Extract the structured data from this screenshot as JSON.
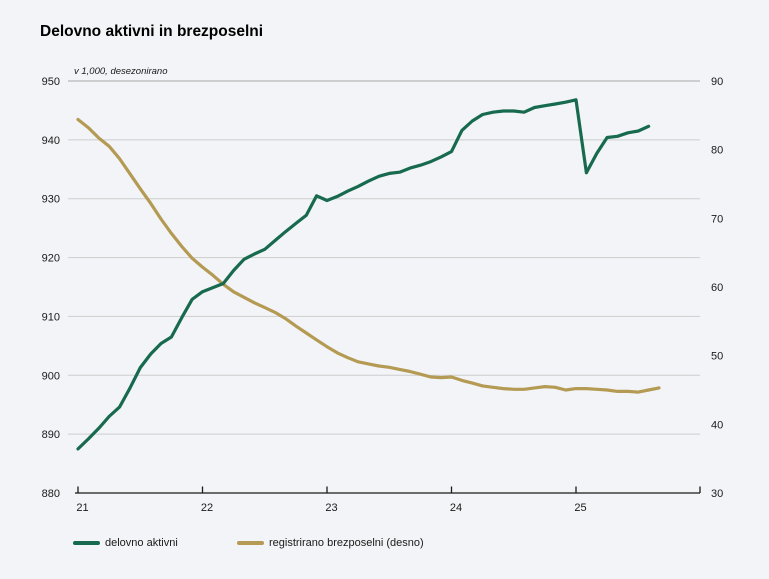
{
  "title": "Delovno aktivni in brezposelni",
  "subtitle": "v 1,000, desezonirano",
  "colors": {
    "employed": "#176a4e",
    "unemployed": "#b49a53",
    "background": "#f2f4f7",
    "gridline": "#cdcdcd",
    "gridline_top": "#a8a8a8",
    "axis": "#1a1a1a"
  },
  "legend": [
    {
      "label": "delovno aktivni",
      "series": "employed"
    },
    {
      "label": "registrirano brezposelni (desno)",
      "series": "unemployed"
    }
  ],
  "chart_data": {
    "type": "line",
    "title": "Delovno aktivni in brezposelni",
    "subtitle": "v 1,000, desezonirano",
    "x_frequency": "monthly",
    "x_start": "2021-01",
    "x_tick_labels": [
      "21",
      "22",
      "23",
      "24",
      "25"
    ],
    "y_left": {
      "min": 880,
      "max": 950,
      "ticks": [
        950,
        940,
        930,
        920,
        910,
        900,
        890,
        880
      ]
    },
    "y_right": {
      "min": 30,
      "max": 90,
      "ticks": [
        90,
        80,
        70,
        60,
        50,
        40,
        30
      ]
    },
    "grid": "horizontal",
    "legend_position": "bottom",
    "series": [
      {
        "name": "delovno aktivni",
        "axis": "left",
        "color": "#176a4e",
        "values": [
          887.5,
          889.2,
          891.0,
          893.0,
          894.6,
          897.8,
          901.3,
          903.6,
          905.4,
          906.5,
          909.8,
          912.9,
          914.2,
          914.9,
          915.6,
          917.8,
          919.7,
          920.6,
          921.4,
          922.9,
          924.4,
          925.8,
          927.2,
          930.5,
          929.7,
          930.4,
          931.3,
          932.1,
          933.0,
          933.8,
          934.3,
          934.5,
          935.2,
          935.7,
          936.3,
          937.1,
          938.0,
          941.6,
          943.2,
          944.3,
          944.7,
          944.9,
          944.9,
          944.7,
          945.5,
          945.8,
          946.1,
          946.4,
          946.8,
          934.4,
          937.7,
          940.4,
          940.6,
          941.2,
          941.5,
          942.3
        ]
      },
      {
        "name": "registrirano brezposelni (desno)",
        "axis": "right",
        "color": "#b49a53",
        "values": [
          84.4,
          83.2,
          81.7,
          80.5,
          78.7,
          76.5,
          74.3,
          72.2,
          69.9,
          67.8,
          65.9,
          64.2,
          62.9,
          61.7,
          60.4,
          59.3,
          58.5,
          57.7,
          57.0,
          56.3,
          55.4,
          54.3,
          53.3,
          52.3,
          51.3,
          50.4,
          49.7,
          49.1,
          48.8,
          48.5,
          48.3,
          48.0,
          47.7,
          47.3,
          46.9,
          46.8,
          46.9,
          46.4,
          46.0,
          45.6,
          45.4,
          45.2,
          45.1,
          45.1,
          45.3,
          45.5,
          45.4,
          45.0,
          45.2,
          45.2,
          45.1,
          45.0,
          44.8,
          44.8,
          44.7,
          45.0,
          45.3
        ]
      }
    ]
  }
}
